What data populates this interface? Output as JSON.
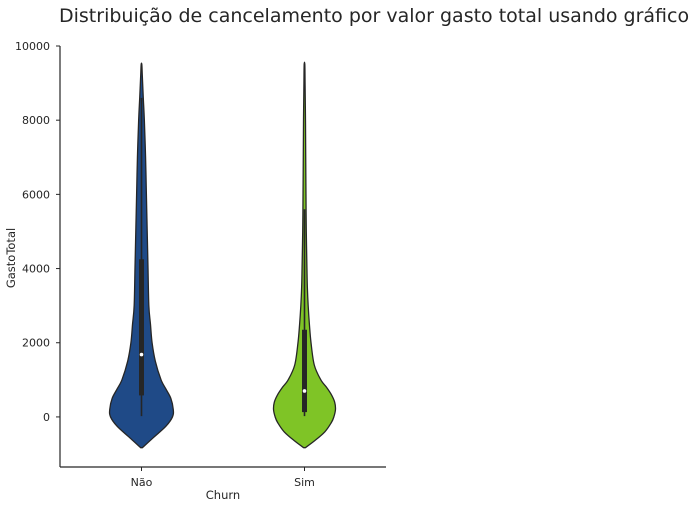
{
  "chart_data": {
    "type": "violin",
    "title": "Distribuição de cancelamento por valor gasto total usando gráfico violino",
    "xlabel": "Churn",
    "ylabel": "GastoTotal",
    "categories": [
      "Não",
      "Sim"
    ],
    "ylim": [
      -1350,
      10000
    ],
    "yticks": [
      0,
      2000,
      4000,
      6000,
      8000,
      10000
    ],
    "grid": false,
    "violins": [
      {
        "category": "Não",
        "color": "#1f4a87",
        "median": 1680,
        "q1": 580,
        "q3": 4250,
        "whisker_low": 20,
        "whisker_high": 8600,
        "profile_y": [
          -830,
          -550,
          -250,
          0,
          200,
          500,
          750,
          1000,
          1500,
          2000,
          2500,
          3000,
          4000,
          5000,
          6000,
          7000,
          8000,
          8600,
          9200,
          9500
        ],
        "profile_w": [
          0.01,
          0.15,
          0.3,
          0.38,
          0.39,
          0.36,
          0.3,
          0.24,
          0.17,
          0.13,
          0.11,
          0.09,
          0.08,
          0.07,
          0.06,
          0.05,
          0.035,
          0.022,
          0.01,
          0.004
        ]
      },
      {
        "category": "Sim",
        "color": "#7fc426",
        "median": 700,
        "q1": 130,
        "q3": 2350,
        "whisker_low": 20,
        "whisker_high": 5600,
        "profile_y": [
          -830,
          -650,
          -400,
          -150,
          0,
          200,
          400,
          600,
          800,
          1000,
          1400,
          2000,
          2500,
          3000,
          3500,
          4000,
          5000,
          6000,
          7000,
          8000,
          9000,
          9500
        ],
        "profile_w": [
          0.01,
          0.12,
          0.25,
          0.33,
          0.36,
          0.38,
          0.37,
          0.33,
          0.27,
          0.2,
          0.12,
          0.08,
          0.06,
          0.045,
          0.035,
          0.03,
          0.022,
          0.018,
          0.015,
          0.012,
          0.007,
          0.004
        ]
      }
    ]
  }
}
